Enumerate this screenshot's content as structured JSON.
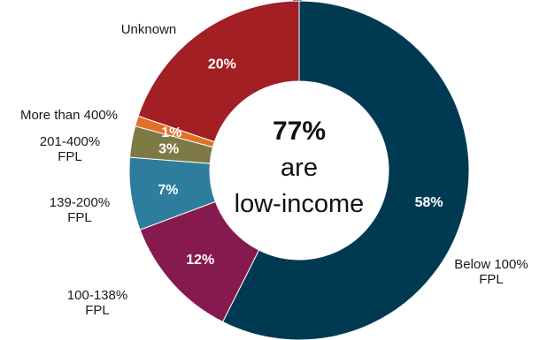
{
  "chart_data": {
    "type": "pie",
    "donut": true,
    "center": {
      "value": "77%",
      "line1": "are",
      "line2": "low-income"
    },
    "slices": [
      {
        "label": [
          "Below 100%",
          "FPL"
        ],
        "value": 58,
        "pct_text": "58%",
        "color": "#003a52"
      },
      {
        "label": [
          "100-138%",
          "FPL"
        ],
        "value": 12,
        "pct_text": "12%",
        "color": "#861a4e"
      },
      {
        "label": [
          "139-200%",
          "FPL"
        ],
        "value": 7,
        "pct_text": "7%",
        "color": "#2e7d9c"
      },
      {
        "label": [
          "201-400%",
          "FPL"
        ],
        "value": 3,
        "pct_text": "3%",
        "color": "#7e7a48"
      },
      {
        "label": [
          "More than 400%"
        ],
        "value": 1,
        "pct_text": "1%",
        "color": "#e27127"
      },
      {
        "label": [
          "Unknown"
        ],
        "value": 20,
        "pct_text": "20%",
        "color": "#a21f24"
      }
    ]
  }
}
